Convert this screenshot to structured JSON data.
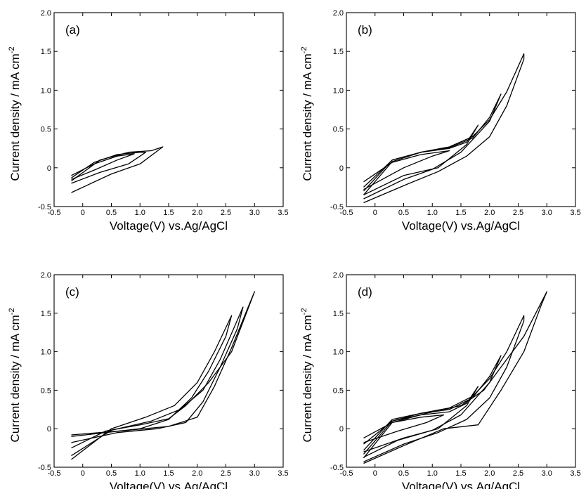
{
  "chart_data": [
    {
      "type": "line",
      "panel_label": "(a)",
      "xlabel": "Voltage(V) vs.Ag/AgCl",
      "ylabel": "Current density / mA cm",
      "ylabel_sup": "-2",
      "xlim": [
        -0.5,
        3.5
      ],
      "ylim": [
        -0.5,
        2.0
      ],
      "xticks": [
        "-0.5",
        "0",
        "0.5",
        "1.0",
        "1.5",
        "2.0",
        "2.5",
        "3.0",
        "3.5"
      ],
      "yticks": [
        "-0.5",
        "0",
        "0.5",
        "1.0",
        "1.5",
        "2.0"
      ],
      "series": [
        {
          "x": [
            -0.2,
            0.2,
            0.6,
            0.9,
            0.6,
            0.2,
            -0.2
          ],
          "y": [
            -0.1,
            0.05,
            0.15,
            0.18,
            0.1,
            -0.03,
            -0.15
          ]
        },
        {
          "x": [
            -0.2,
            0.2,
            0.6,
            1.0,
            1.1,
            0.8,
            0.3,
            -0.2
          ],
          "y": [
            -0.13,
            0.07,
            0.17,
            0.2,
            0.2,
            0.05,
            -0.06,
            -0.2
          ]
        },
        {
          "x": [
            -0.2,
            0.3,
            0.8,
            1.2,
            1.4,
            1.0,
            0.5,
            -0.2
          ],
          "y": [
            -0.17,
            0.1,
            0.2,
            0.22,
            0.27,
            0.05,
            -0.08,
            -0.32
          ]
        }
      ]
    },
    {
      "type": "line",
      "panel_label": "(b)",
      "xlabel": "Voltage(V) vs.Ag/AgCl",
      "ylabel": "Current density / mA cm",
      "ylabel_sup": "-2",
      "xlim": [
        -0.5,
        3.5
      ],
      "ylim": [
        -0.5,
        2.0
      ],
      "xticks": [
        "-0.5",
        "0",
        "0.5",
        "1.0",
        "1.5",
        "2.0",
        "2.5",
        "3.0",
        "3.5"
      ],
      "yticks": [
        "-0.5",
        "0",
        "0.5",
        "1.0",
        "1.5",
        "2.0"
      ],
      "series": [
        {
          "x": [
            -0.2,
            0.3,
            0.8,
            1.3,
            1.0,
            0.5,
            -0.2
          ],
          "y": [
            -0.18,
            0.07,
            0.17,
            0.22,
            0.15,
            0.0,
            -0.28
          ]
        },
        {
          "x": [
            -0.2,
            0.3,
            0.8,
            1.3,
            1.6,
            1.8,
            1.6,
            1.1,
            0.5,
            -0.2
          ],
          "y": [
            -0.25,
            0.1,
            0.2,
            0.25,
            0.33,
            0.55,
            0.3,
            0.0,
            -0.1,
            -0.35
          ]
        },
        {
          "x": [
            -0.2,
            0.3,
            0.8,
            1.3,
            1.7,
            2.0,
            2.2,
            2.0,
            1.5,
            1.0,
            0.5,
            -0.2
          ],
          "y": [
            -0.3,
            0.1,
            0.2,
            0.26,
            0.38,
            0.65,
            0.95,
            0.6,
            0.2,
            -0.02,
            -0.15,
            -0.4
          ]
        },
        {
          "x": [
            -0.2,
            0.3,
            0.8,
            1.3,
            1.7,
            2.0,
            2.3,
            2.6,
            2.6,
            2.3,
            2.0,
            1.6,
            1.1,
            0.6,
            -0.2
          ],
          "y": [
            -0.35,
            0.08,
            0.2,
            0.27,
            0.4,
            0.62,
            0.98,
            1.47,
            1.4,
            0.8,
            0.4,
            0.15,
            -0.05,
            -0.2,
            -0.45
          ]
        }
      ]
    },
    {
      "type": "line",
      "panel_label": "(c)",
      "xlabel": "Voltage(V) vs.Ag/AgCl",
      "ylabel": "Current density / mA cm",
      "ylabel_sup": "-2",
      "xlim": [
        -0.5,
        3.5
      ],
      "ylim": [
        -0.5,
        2.0
      ],
      "xticks": [
        "-0.5",
        "0",
        "0.5",
        "1.0",
        "1.5",
        "2.0",
        "2.5",
        "3.0",
        "3.5"
      ],
      "yticks": [
        "-0.5",
        "0",
        "0.5",
        "1.0",
        "1.5",
        "2.0"
      ],
      "series": [
        {
          "x": [
            -0.2,
            0.5,
            1.1,
            1.6,
            2.0,
            2.3,
            2.6,
            2.5,
            2.2,
            1.9,
            1.5,
            1.0,
            0.4,
            -0.2
          ],
          "y": [
            -0.4,
            0.0,
            0.15,
            0.3,
            0.6,
            1.0,
            1.47,
            1.2,
            0.75,
            0.4,
            0.12,
            0.0,
            -0.05,
            -0.1
          ]
        },
        {
          "x": [
            -0.2,
            0.5,
            1.2,
            1.7,
            2.1,
            2.4,
            2.8,
            2.7,
            2.4,
            2.1,
            1.8,
            1.3,
            0.6,
            -0.2
          ],
          "y": [
            -0.35,
            -0.02,
            0.1,
            0.25,
            0.5,
            0.9,
            1.58,
            1.3,
            0.8,
            0.35,
            0.08,
            0.0,
            -0.05,
            -0.18
          ]
        },
        {
          "x": [
            -0.2,
            0.4,
            1.0,
            1.5,
            1.8,
            2.2,
            2.6,
            3.0,
            2.9,
            2.6,
            2.3,
            2.0,
            1.5,
            0.8,
            -0.2
          ],
          "y": [
            -0.25,
            -0.03,
            0.05,
            0.13,
            0.3,
            0.6,
            1.0,
            1.78,
            1.6,
            1.05,
            0.55,
            0.15,
            0.03,
            -0.02,
            -0.08
          ]
        }
      ]
    },
    {
      "type": "line",
      "panel_label": "(d)",
      "xlabel": "Voltage(V) vs.Ag/AgCl",
      "ylabel": "Current density / mA cm",
      "ylabel_sup": "-2",
      "xlim": [
        -0.5,
        3.5
      ],
      "ylim": [
        -0.5,
        2.0
      ],
      "xticks": [
        "-0.5",
        "0",
        "0.5",
        "1.0",
        "1.5",
        "2.0",
        "2.5",
        "3.0",
        "3.5"
      ],
      "yticks": [
        "-0.5",
        "0",
        "0.5",
        "1.0",
        "1.5",
        "2.0"
      ],
      "series": [
        {
          "x": [
            -0.2,
            0.3,
            0.8,
            1.2,
            0.9,
            0.4,
            -0.2
          ],
          "y": [
            -0.12,
            0.08,
            0.15,
            0.18,
            0.08,
            -0.03,
            -0.18
          ]
        },
        {
          "x": [
            -0.2,
            0.3,
            0.8,
            1.3,
            1.6,
            1.8,
            1.6,
            1.1,
            0.5,
            -0.2
          ],
          "y": [
            -0.2,
            0.1,
            0.18,
            0.22,
            0.33,
            0.55,
            0.3,
            0.0,
            -0.12,
            -0.3
          ]
        },
        {
          "x": [
            -0.2,
            0.3,
            0.8,
            1.3,
            1.7,
            2.0,
            2.2,
            2.0,
            1.5,
            1.0,
            0.4,
            -0.2
          ],
          "y": [
            -0.28,
            0.12,
            0.2,
            0.25,
            0.4,
            0.68,
            0.95,
            0.6,
            0.18,
            -0.02,
            -0.15,
            -0.37
          ]
        },
        {
          "x": [
            -0.2,
            0.3,
            0.8,
            1.3,
            1.7,
            2.0,
            2.3,
            2.6,
            2.6,
            2.3,
            2.0,
            1.6,
            1.1,
            0.5,
            -0.2
          ],
          "y": [
            -0.33,
            0.1,
            0.2,
            0.27,
            0.42,
            0.65,
            1.0,
            1.47,
            1.4,
            0.8,
            0.4,
            0.12,
            -0.05,
            -0.2,
            -0.43
          ]
        },
        {
          "x": [
            -0.2,
            0.3,
            0.9,
            1.5,
            1.9,
            2.2,
            2.6,
            3.0,
            2.9,
            2.6,
            2.2,
            1.8,
            1.2,
            0.5,
            -0.2
          ],
          "y": [
            -0.38,
            0.08,
            0.2,
            0.3,
            0.5,
            0.8,
            1.2,
            1.78,
            1.6,
            1.0,
            0.5,
            0.05,
            0.0,
            -0.22,
            -0.45
          ]
        }
      ]
    }
  ]
}
